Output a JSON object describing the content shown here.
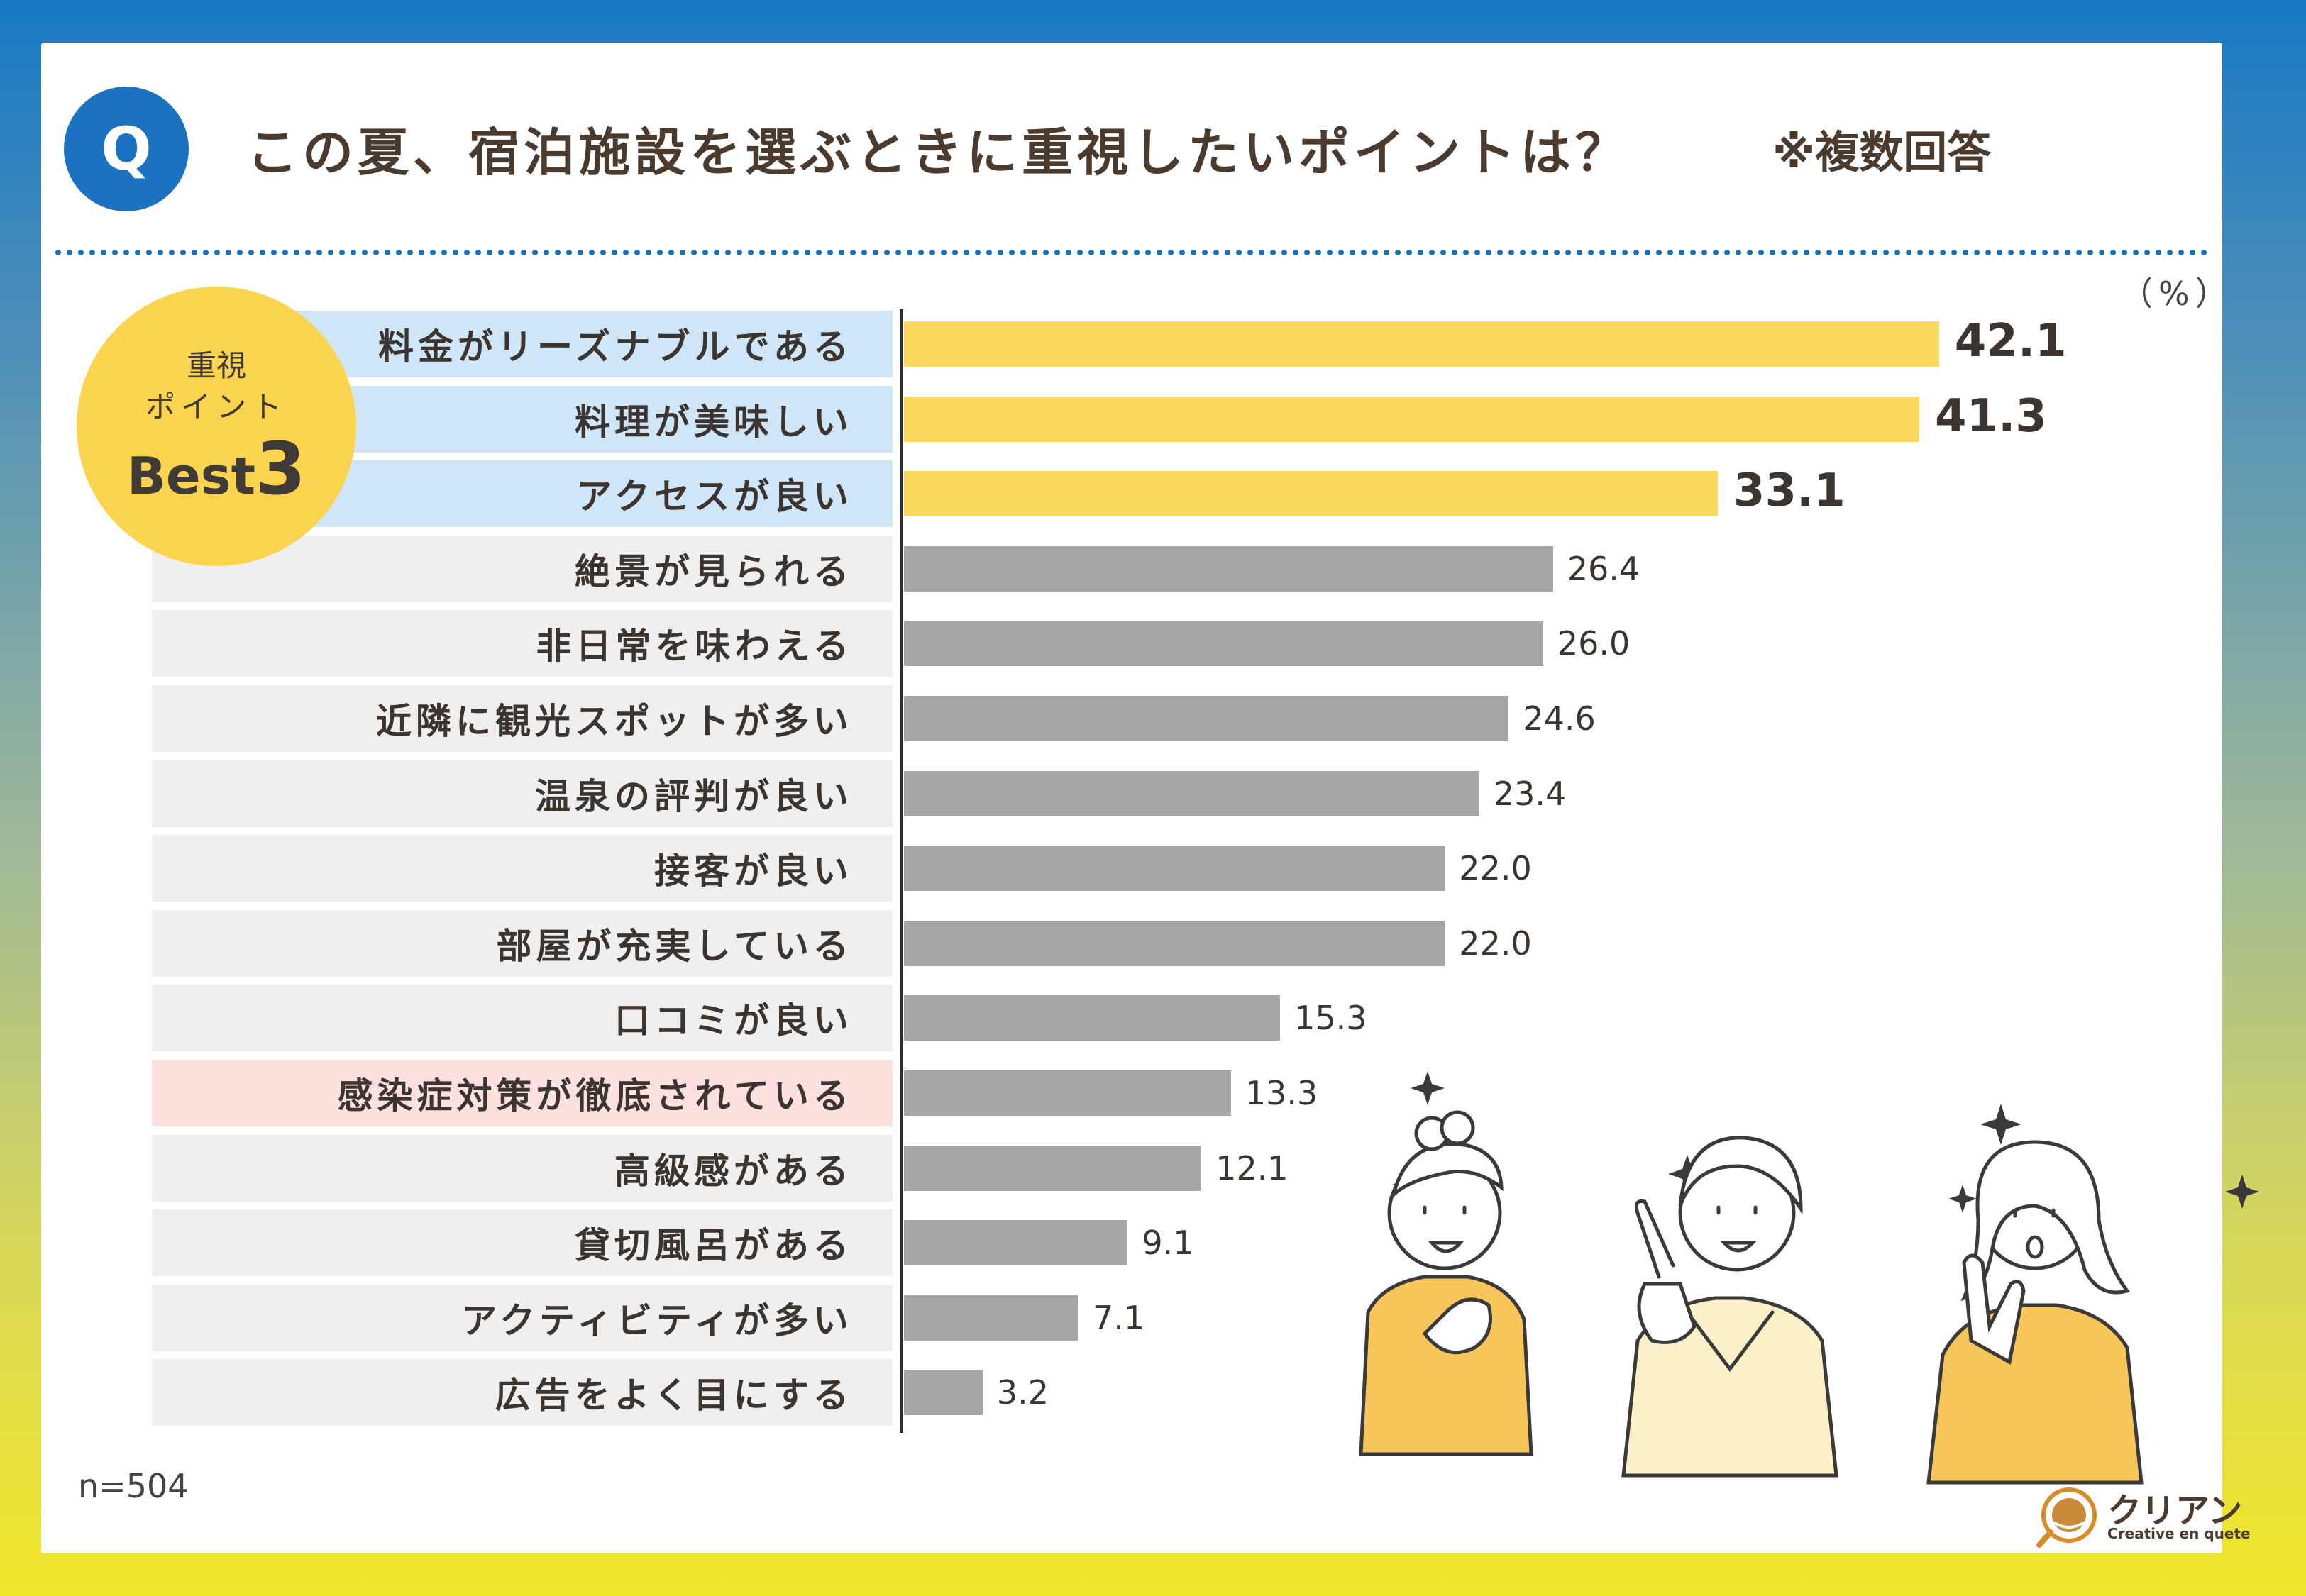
{
  "header": {
    "badge": "Q",
    "title": "この夏、宿泊施設を選ぶときに重視したいポイントは？",
    "note": "※複数回答"
  },
  "badge_best": {
    "line1": "重視",
    "line2": "ポイント",
    "line3_text": "Best",
    "line3_num": "3"
  },
  "footer": {
    "n": "n=504"
  },
  "logo": {
    "name": "クリアン",
    "sub": "Creative en quete"
  },
  "colors": {
    "top_bar": "#fcd95c",
    "other_bar": "#a6a6a6",
    "top_label_bg": "#cfe5f8",
    "normal_label_bg": "#efefef",
    "highlight_label_bg": "#fde1df",
    "accent_blue": "#1a72c0"
  },
  "chart_data": {
    "type": "bar",
    "orientation": "horizontal",
    "title": "この夏、宿泊施設を選ぶときに重視したいポイントは？",
    "unit": "（%）",
    "xlim": [
      0,
      50
    ],
    "categories": [
      "料金がリーズナブルである",
      "料理が美味しい",
      "アクセスが良い",
      "絶景が見られる",
      "非日常を味わえる",
      "近隣に観光スポットが多い",
      "温泉の評判が良い",
      "接客が良い",
      "部屋が充実している",
      "口コミが良い",
      "感染症対策が徹底されている",
      "高級感がある",
      "貸切風呂がある",
      "アクティビティが多い",
      "広告をよく目にする"
    ],
    "values": [
      42.1,
      41.3,
      33.1,
      26.4,
      26.0,
      24.6,
      23.4,
      22.0,
      22.0,
      15.3,
      13.3,
      12.1,
      9.1,
      7.1,
      3.2
    ],
    "value_labels": [
      "42.1",
      "41.3",
      "33.1",
      "26.4",
      "26.0",
      "24.6",
      "23.4",
      "22.0",
      "22.0",
      "15.3",
      "13.3",
      "12.1",
      "9.1",
      "7.1",
      "3.2"
    ],
    "top_n": 3,
    "highlight_index": 10
  }
}
